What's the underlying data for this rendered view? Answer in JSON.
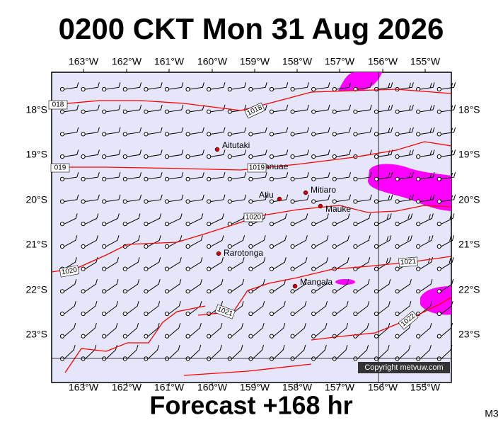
{
  "title": "0200 CKT Mon 31 Aug 2026",
  "footer": "Forecast +168 hr",
  "model": "M3",
  "copyright": "Copyright metvuw.com",
  "x_axis": {
    "labels": [
      "163°W",
      "162°W",
      "161°W",
      "160°W",
      "159°W",
      "158°W",
      "157°W",
      "156°W",
      "155°W"
    ]
  },
  "y_axis": {
    "labels": [
      "18°S",
      "19°S",
      "20°S",
      "21°S",
      "22°S",
      "23°S"
    ]
  },
  "places": [
    {
      "name": "Aitutaki"
    },
    {
      "name": "Manuae"
    },
    {
      "name": "Mitiaro"
    },
    {
      "name": "Atiu"
    },
    {
      "name": "Mauke"
    },
    {
      "name": "Rarotonga"
    },
    {
      "name": "Mangaia"
    }
  ],
  "isobar_labels": [
    "018",
    "1018",
    "019",
    "1019",
    "1020",
    "1020",
    "1021",
    "1021",
    "1022"
  ]
}
